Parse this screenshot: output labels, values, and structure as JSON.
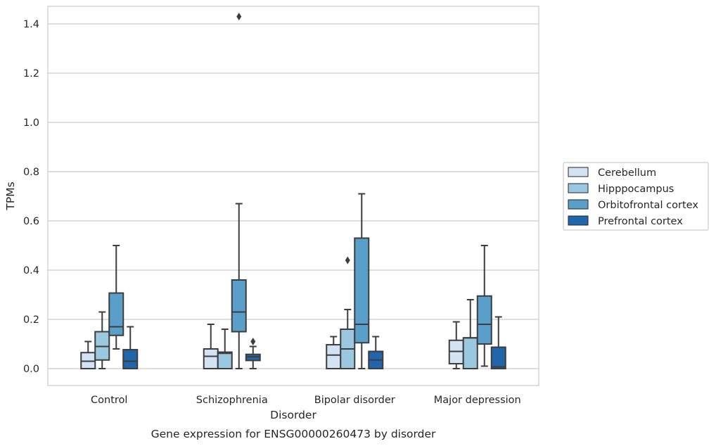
{
  "chart_data": {
    "type": "box",
    "title": "",
    "caption": "Gene expression for ENSG00000260473 by disorder",
    "xlabel": "Disorder",
    "ylabel": "TPMs",
    "ylim": [
      -0.07,
      1.5
    ],
    "yticks": [
      0.0,
      0.2,
      0.4,
      0.6,
      0.8,
      1.0,
      1.2,
      1.4
    ],
    "grid": "horizontal",
    "legend_position": "right",
    "categories": [
      "Control",
      "Schizophrenia",
      "Bipolar disorder",
      "Major depression"
    ],
    "series": [
      {
        "name": "Cerebellum",
        "color": "#d2e3f3",
        "boxes": [
          {
            "whislo": 0.0,
            "q1": 0.0,
            "med": 0.03,
            "q3": 0.065,
            "whishi": 0.11,
            "fliers": []
          },
          {
            "whislo": 0.0,
            "q1": 0.0,
            "med": 0.05,
            "q3": 0.08,
            "whishi": 0.18,
            "fliers": []
          },
          {
            "whislo": 0.0,
            "q1": 0.0,
            "med": 0.055,
            "q3": 0.097,
            "whishi": 0.13,
            "fliers": []
          },
          {
            "whislo": 0.0,
            "q1": 0.02,
            "med": 0.07,
            "q3": 0.115,
            "whishi": 0.19,
            "fliers": []
          }
        ]
      },
      {
        "name": "Hipppocampus",
        "color": "#9ac8e0",
        "boxes": [
          {
            "whislo": 0.0,
            "q1": 0.035,
            "med": 0.09,
            "q3": 0.15,
            "whishi": 0.23,
            "fliers": []
          },
          {
            "whislo": 0.0,
            "q1": 0.0,
            "med": 0.062,
            "q3": 0.067,
            "whishi": 0.16,
            "fliers": []
          },
          {
            "whislo": 0.0,
            "q1": 0.0,
            "med": 0.08,
            "q3": 0.16,
            "whishi": 0.24,
            "fliers": [
              0.44
            ]
          },
          {
            "whislo": 0.0,
            "q1": 0.0,
            "med": 0.125,
            "q3": 0.125,
            "whishi": 0.28,
            "fliers": []
          }
        ]
      },
      {
        "name": "Orbitofrontal cortex",
        "color": "#5a9fca",
        "boxes": [
          {
            "whislo": 0.08,
            "q1": 0.135,
            "med": 0.17,
            "q3": 0.307,
            "whishi": 0.5,
            "fliers": []
          },
          {
            "whislo": 0.0,
            "q1": 0.15,
            "med": 0.23,
            "q3": 0.36,
            "whishi": 0.67,
            "fliers": [
              1.43
            ]
          },
          {
            "whislo": 0.0,
            "q1": 0.105,
            "med": 0.18,
            "q3": 0.53,
            "whishi": 0.71,
            "fliers": []
          },
          {
            "whislo": 0.01,
            "q1": 0.1,
            "med": 0.18,
            "q3": 0.295,
            "whishi": 0.5,
            "fliers": []
          }
        ]
      },
      {
        "name": "Prefrontal cortex",
        "color": "#2165ab",
        "boxes": [
          {
            "whislo": 0.0,
            "q1": 0.0,
            "med": 0.03,
            "q3": 0.077,
            "whishi": 0.17,
            "fliers": []
          },
          {
            "whislo": 0.0,
            "q1": 0.033,
            "med": 0.048,
            "q3": 0.058,
            "whishi": 0.09,
            "fliers": [
              0.11
            ]
          },
          {
            "whislo": 0.0,
            "q1": 0.0,
            "med": 0.035,
            "q3": 0.07,
            "whishi": 0.13,
            "fliers": []
          },
          {
            "whislo": 0.0,
            "q1": 0.0,
            "med": 0.007,
            "q3": 0.087,
            "whishi": 0.21,
            "fliers": []
          }
        ]
      }
    ]
  }
}
